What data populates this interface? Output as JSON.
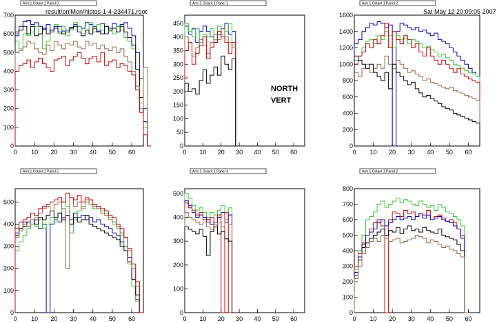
{
  "header": {
    "file_path": "result/onlMon/histos-1-4-234471.root",
    "timestamp": "Sat May 12 20:09:05 2007"
  },
  "annotation": {
    "line1": "NORTH",
    "line2": "VERT"
  },
  "colors": {
    "blue": "#0000cc",
    "green": "#33cc33",
    "red": "#cc0000",
    "black": "#000000",
    "brown": "#996644"
  },
  "chart_data": [
    {
      "type": "line",
      "title": "Arm 1 Octant 1 Panel 0",
      "xlim": [
        0,
        66
      ],
      "ylim": [
        0,
        700
      ],
      "xticks": [
        0,
        10,
        20,
        30,
        40,
        50,
        60
      ],
      "yticks": [
        0,
        100,
        200,
        300,
        400,
        500,
        600,
        700
      ],
      "series": [
        {
          "color": "blue",
          "values": [
            590,
            640,
            665,
            672,
            650,
            660,
            640,
            625,
            650,
            610,
            630,
            640,
            615,
            620,
            635,
            650,
            640,
            630,
            660,
            650,
            640,
            615,
            655,
            600,
            630,
            655,
            640,
            650,
            660,
            630,
            590,
            500,
            360,
            200,
            0
          ]
        },
        {
          "color": "green",
          "values": [
            560,
            520,
            600,
            590,
            610,
            640,
            600,
            520,
            560,
            620,
            650,
            600,
            640,
            590,
            620,
            660,
            640,
            600,
            610,
            660,
            610,
            650,
            620,
            640,
            615,
            600,
            640,
            620,
            580,
            560,
            520,
            410,
            230,
            100,
            0
          ]
        },
        {
          "color": "black",
          "values": [
            610,
            620,
            640,
            600,
            640,
            590,
            600,
            630,
            600,
            620,
            640,
            610,
            600,
            610,
            630,
            640,
            610,
            590,
            620,
            600,
            630,
            610,
            600,
            640,
            620,
            630,
            610,
            640,
            610,
            580,
            540,
            410,
            260,
            130,
            0
          ]
        },
        {
          "color": "brown",
          "values": [
            500,
            510,
            530,
            560,
            550,
            520,
            500,
            490,
            540,
            510,
            560,
            540,
            520,
            550,
            540,
            560,
            530,
            520,
            560,
            540,
            550,
            520,
            540,
            520,
            510,
            530,
            500,
            520,
            480,
            450,
            400,
            320,
            200,
            420,
            0
          ]
        },
        {
          "color": "red",
          "values": [
            400,
            430,
            440,
            460,
            420,
            450,
            470,
            440,
            420,
            400,
            460,
            470,
            480,
            430,
            460,
            480,
            500,
            470,
            440,
            470,
            480,
            450,
            500,
            430,
            450,
            460,
            420,
            440,
            430,
            400,
            380,
            300,
            180,
            60,
            0
          ]
        }
      ]
    },
    {
      "type": "line",
      "title": "Arm 1 Octant 1 Panel 1",
      "xlim": [
        0,
        66
      ],
      "ylim": [
        0,
        480
      ],
      "xticks": [
        0,
        10,
        20,
        30,
        40,
        50,
        60
      ],
      "yticks": [
        0,
        50,
        100,
        150,
        200,
        250,
        300,
        350,
        400,
        450
      ],
      "series": [
        {
          "color": "blue",
          "values": [
            440,
            410,
            430,
            380,
            420,
            440,
            420,
            400,
            380,
            410,
            430,
            450,
            410,
            420,
            0
          ]
        },
        {
          "color": "green",
          "values": [
            450,
            420,
            400,
            430,
            380,
            410,
            400,
            430,
            390,
            440,
            410,
            420,
            450,
            370,
            0
          ]
        },
        {
          "color": "brown",
          "values": [
            400,
            380,
            330,
            360,
            390,
            370,
            340,
            380,
            410,
            390,
            430,
            400,
            380,
            360,
            0
          ]
        },
        {
          "color": "red",
          "values": [
            350,
            380,
            300,
            340,
            370,
            400,
            320,
            360,
            380,
            420,
            400,
            380,
            340,
            380,
            0
          ]
        },
        {
          "color": "black",
          "values": [
            230,
            200,
            210,
            190,
            240,
            280,
            230,
            260,
            290,
            260,
            330,
            300,
            280,
            320,
            0
          ]
        }
      ]
    },
    {
      "type": "line",
      "title": "Arm 1 Octant 1 Panel 2",
      "xlim": [
        0,
        66
      ],
      "ylim": [
        0,
        1600
      ],
      "xticks": [
        0,
        10,
        20,
        30,
        40,
        50,
        60
      ],
      "yticks": [
        0,
        200,
        400,
        600,
        800,
        1000,
        1200,
        1400,
        1600
      ],
      "series": [
        {
          "color": "blue",
          "values": [
            1250,
            1300,
            1400,
            1450,
            1500,
            1480,
            1520,
            1500,
            1450,
            1480,
            0,
            1400,
            1500,
            1480,
            1450,
            1420,
            1450,
            1400,
            1420,
            1380,
            1350,
            1380,
            1300,
            1280,
            1250,
            1200,
            1150,
            1100,
            1050,
            1000,
            950,
            900,
            850
          ]
        },
        {
          "color": "green",
          "values": [
            1050,
            1100,
            1200,
            1280,
            1300,
            1250,
            1350,
            1300,
            1400,
            1350,
            1200,
            1350,
            1300,
            1320,
            1250,
            1300,
            1280,
            1250,
            1200,
            1220,
            1180,
            1150,
            1100,
            1120,
            1080,
            1050,
            1000,
            980,
            950,
            920,
            900,
            880,
            850
          ]
        },
        {
          "color": "red",
          "values": [
            1000,
            1100,
            1150,
            1250,
            1200,
            1300,
            1250,
            1350,
            1500,
            1200,
            1400,
            1300,
            1250,
            1350,
            1300,
            1200,
            1250,
            1150,
            1100,
            1200,
            1100,
            1050,
            1000,
            1050,
            1000,
            950,
            900,
            950,
            880,
            850,
            820,
            800,
            780
          ]
        },
        {
          "color": "brown",
          "values": [
            900,
            850,
            950,
            1000,
            900,
            950,
            1000,
            950,
            1100,
            1000,
            950,
            1050,
            1000,
            950,
            900,
            920,
            880,
            850,
            800,
            820,
            780,
            760,
            740,
            720,
            700,
            720,
            680,
            660,
            640,
            620,
            600,
            580,
            560
          ]
        },
        {
          "color": "black",
          "values": [
            1100,
            1050,
            1000,
            950,
            1000,
            900,
            850,
            800,
            900,
            700,
            1000,
            900,
            850,
            800,
            750,
            780,
            700,
            650,
            600,
            620,
            580,
            550,
            520,
            480,
            460,
            440,
            400,
            380,
            360,
            340,
            320,
            300,
            280
          ]
        }
      ]
    },
    {
      "type": "line",
      "title": "Arm 1 Octant 1 Panel 5",
      "xlim": [
        0,
        66
      ],
      "ylim": [
        0,
        560
      ],
      "xticks": [
        0,
        10,
        20,
        30,
        40,
        50,
        60
      ],
      "yticks": [
        0,
        100,
        200,
        300,
        400,
        500
      ],
      "series": [
        {
          "color": "blue",
          "values": [
            360,
            380,
            410,
            390,
            400,
            420,
            380,
            400,
            0,
            400,
            420,
            410,
            430,
            440,
            420,
            450,
            430,
            440,
            420,
            430,
            410,
            420,
            400,
            390,
            380,
            360,
            350,
            320,
            300,
            250,
            150,
            60,
            0
          ]
        },
        {
          "color": "green",
          "values": [
            280,
            320,
            350,
            380,
            400,
            390,
            420,
            380,
            400,
            430,
            410,
            450,
            500,
            480,
            360,
            420,
            460,
            480,
            500,
            490,
            470,
            480,
            460,
            450,
            430,
            400,
            380,
            350,
            300,
            220,
            120,
            50,
            0
          ]
        },
        {
          "color": "black",
          "values": [
            350,
            380,
            390,
            410,
            420,
            400,
            430,
            420,
            440,
            460,
            430,
            450,
            420,
            440,
            400,
            430,
            410,
            420,
            440,
            400,
            390,
            380,
            370,
            360,
            350,
            340,
            330,
            300,
            280,
            230,
            150,
            80,
            0
          ]
        },
        {
          "color": "brown",
          "values": [
            340,
            370,
            400,
            390,
            420,
            430,
            450,
            470,
            480,
            460,
            490,
            500,
            470,
            200,
            520,
            480,
            500,
            470,
            510,
            490,
            480,
            470,
            450,
            440,
            420,
            410,
            390,
            360,
            340,
            280,
            200,
            120,
            0
          ]
        },
        {
          "color": "red",
          "values": [
            380,
            410,
            420,
            430,
            450,
            440,
            470,
            480,
            490,
            500,
            510,
            520,
            500,
            540,
            520,
            510,
            530,
            500,
            520,
            510,
            490,
            480,
            470,
            460,
            440,
            430,
            400,
            380,
            340,
            290,
            220,
            140,
            0
          ]
        }
      ]
    },
    {
      "type": "line",
      "title": "Arm 1 Octant 1 Panel 4",
      "xlim": [
        0,
        66
      ],
      "ylim": [
        0,
        520
      ],
      "xticks": [
        0,
        10,
        20,
        30,
        40,
        50,
        60
      ],
      "yticks": [
        0,
        100,
        200,
        300,
        400,
        500
      ],
      "series": [
        {
          "color": "green",
          "values": [
            500,
            480,
            450,
            430,
            440,
            420,
            400,
            420,
            410,
            430,
            450,
            380,
            440,
            0
          ]
        },
        {
          "color": "blue",
          "values": [
            470,
            450,
            420,
            400,
            410,
            400,
            390,
            370,
            380,
            400,
            420,
            380,
            410,
            0
          ]
        },
        {
          "color": "red",
          "values": [
            460,
            440,
            430,
            410,
            420,
            390,
            380,
            400,
            360,
            410,
            0,
            420,
            0,
            0
          ]
        },
        {
          "color": "brown",
          "values": [
            420,
            400,
            390,
            380,
            370,
            380,
            360,
            350,
            370,
            380,
            360,
            390,
            370,
            0
          ]
        },
        {
          "color": "black",
          "values": [
            360,
            350,
            340,
            330,
            350,
            320,
            240,
            340,
            360,
            330,
            340,
            310,
            300,
            0
          ]
        }
      ]
    },
    {
      "type": "line",
      "title": "Arm 1 Octant 1 Panel 3",
      "xlim": [
        0,
        66
      ],
      "ylim": [
        0,
        800
      ],
      "xticks": [
        0,
        10,
        20,
        30,
        40,
        50,
        60
      ],
      "yticks": [
        0,
        100,
        200,
        300,
        400,
        500,
        600,
        700,
        800
      ],
      "series": [
        {
          "color": "green",
          "values": [
            280,
            400,
            500,
            600,
            620,
            650,
            700,
            720,
            680,
            700,
            720,
            740,
            710,
            730,
            720,
            700,
            690,
            720,
            700,
            680,
            690,
            660,
            700,
            680,
            650,
            640,
            620,
            600,
            560,
            0
          ]
        },
        {
          "color": "red",
          "values": [
            300,
            380,
            450,
            500,
            540,
            580,
            600,
            560,
            0,
            600,
            650,
            640,
            620,
            660,
            640,
            650,
            620,
            640,
            630,
            660,
            600,
            620,
            630,
            610,
            590,
            600,
            580,
            540,
            500,
            0
          ]
        },
        {
          "color": "blue",
          "values": [
            260,
            360,
            440,
            500,
            520,
            540,
            580,
            600,
            560,
            580,
            600,
            620,
            600,
            610,
            620,
            600,
            620,
            640,
            610,
            630,
            600,
            610,
            620,
            600,
            590,
            580,
            560,
            540,
            480,
            0
          ]
        },
        {
          "color": "black",
          "values": [
            240,
            340,
            420,
            450,
            480,
            500,
            520,
            540,
            500,
            530,
            520,
            550,
            510,
            540,
            560,
            530,
            540,
            520,
            550,
            530,
            520,
            510,
            540,
            500,
            490,
            480,
            470,
            440,
            400,
            0
          ]
        },
        {
          "color": "brown",
          "values": [
            220,
            300,
            380,
            420,
            460,
            480,
            460,
            500,
            480,
            460,
            470,
            480,
            450,
            460,
            470,
            480,
            500,
            490,
            480,
            450,
            470,
            460,
            440,
            420,
            430,
            410,
            400,
            380,
            360,
            0
          ]
        }
      ]
    }
  ]
}
